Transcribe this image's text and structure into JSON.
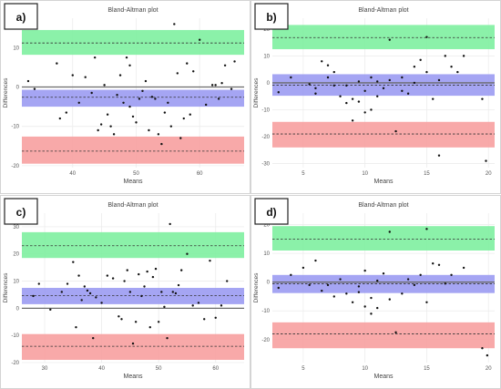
{
  "chart_data": [
    {
      "type": "scatter",
      "panel_label": "a)",
      "title": "Bland-Altman plot",
      "xlabel": "Means",
      "ylabel": "Differences",
      "xlim": [
        32,
        67
      ],
      "ylim": [
        -20.5,
        17.5
      ],
      "xticks": [
        40,
        50,
        60
      ],
      "yticks": [
        -20,
        -10,
        0,
        10
      ],
      "grid": true,
      "bands": [
        {
          "name": "upper",
          "color": "#7ef0a0",
          "low": 8.2,
          "high": 14.5,
          "mean": 11.2
        },
        {
          "name": "bias",
          "color": "#9b9bf2",
          "low": -5.0,
          "high": -0.7,
          "mean": -2.6
        },
        {
          "name": "lower",
          "color": "#f7a0a0",
          "low": -19.5,
          "high": -12.6,
          "mean": -16.3
        }
      ],
      "zero_line": true,
      "points": [
        [
          33.0,
          1.5
        ],
        [
          34.0,
          -0.5
        ],
        [
          37.5,
          6.0
        ],
        [
          38.0,
          -8.0
        ],
        [
          39.0,
          -6.5
        ],
        [
          40.0,
          3.0
        ],
        [
          41.0,
          -4.0
        ],
        [
          42.0,
          2.5
        ],
        [
          43.0,
          -1.5
        ],
        [
          43.5,
          7.5
        ],
        [
          44.0,
          -11.0
        ],
        [
          44.5,
          -9.5
        ],
        [
          45.0,
          0.5
        ],
        [
          45.5,
          -7.0
        ],
        [
          46.0,
          -10.0
        ],
        [
          46.5,
          -12.0
        ],
        [
          47.0,
          -2.0
        ],
        [
          47.5,
          3.0
        ],
        [
          48.0,
          -4.0
        ],
        [
          48.5,
          7.5
        ],
        [
          49.0,
          5.5
        ],
        [
          49.0,
          -5.0
        ],
        [
          49.5,
          -7.5
        ],
        [
          50.0,
          -9.0
        ],
        [
          50.5,
          -3.0
        ],
        [
          51.0,
          -1.0
        ],
        [
          51.5,
          1.5
        ],
        [
          52.0,
          -11.0
        ],
        [
          52.5,
          -2.5
        ],
        [
          53.0,
          -3.0
        ],
        [
          53.5,
          -12.0
        ],
        [
          54.0,
          -14.5
        ],
        [
          54.5,
          -6.5
        ],
        [
          55.0,
          -4.0
        ],
        [
          55.5,
          -10.0
        ],
        [
          56.0,
          16.0
        ],
        [
          56.5,
          3.5
        ],
        [
          57.0,
          -13.0
        ],
        [
          57.5,
          -8.0
        ],
        [
          58.0,
          6.0
        ],
        [
          58.5,
          -7.0
        ],
        [
          59.0,
          4.0
        ],
        [
          60.0,
          12.0
        ],
        [
          61.0,
          -4.5
        ],
        [
          62.0,
          0.5
        ],
        [
          62.5,
          0.5
        ],
        [
          63.0,
          -3.0
        ],
        [
          63.5,
          1.0
        ],
        [
          64.0,
          5.5
        ],
        [
          65.0,
          -0.5
        ],
        [
          65.5,
          6.5
        ]
      ]
    },
    {
      "type": "scatter",
      "panel_label": "b)",
      "title": "Bland-Altman plot",
      "xlabel": "Means",
      "ylabel": "Differences",
      "xlim": [
        2.5,
        20.5
      ],
      "ylim": [
        -31.5,
        24
      ],
      "xticks": [
        5,
        10,
        15,
        20
      ],
      "yticks": [
        -30,
        -20,
        -10,
        0,
        10,
        20
      ],
      "grid": true,
      "bands": [
        {
          "name": "upper",
          "color": "#7ef0a0",
          "low": 12.5,
          "high": 21.5,
          "mean": 16.8
        },
        {
          "name": "bias",
          "color": "#9b9bf2",
          "low": -4.8,
          "high": 3.2,
          "mean": -0.9
        },
        {
          "name": "lower",
          "color": "#f7a0a0",
          "low": -24.0,
          "high": -14.5,
          "mean": -19.0
        }
      ],
      "zero_line": true,
      "points": [
        [
          3.0,
          -3.5
        ],
        [
          4.0,
          2.0
        ],
        [
          5.5,
          -0.5
        ],
        [
          6.0,
          -2.0
        ],
        [
          6.0,
          -4.0
        ],
        [
          6.5,
          8.0
        ],
        [
          7.0,
          2.0
        ],
        [
          7.0,
          6.5
        ],
        [
          7.5,
          -1.0
        ],
        [
          7.5,
          4.0
        ],
        [
          8.0,
          -5.0
        ],
        [
          8.5,
          -7.5
        ],
        [
          8.5,
          -1.0
        ],
        [
          9.0,
          -14.0
        ],
        [
          9.0,
          -6.0
        ],
        [
          9.5,
          0.5
        ],
        [
          9.5,
          -7.0
        ],
        [
          10.0,
          -11.0
        ],
        [
          10.0,
          -3.0
        ],
        [
          10.5,
          -10.0
        ],
        [
          10.5,
          2.0
        ],
        [
          11.0,
          0.5
        ],
        [
          11.0,
          -5.0
        ],
        [
          11.5,
          -2.0
        ],
        [
          12.0,
          16.0
        ],
        [
          12.0,
          1.0
        ],
        [
          12.5,
          -18.0
        ],
        [
          13.0,
          -3.0
        ],
        [
          13.0,
          2.0
        ],
        [
          13.5,
          -4.0
        ],
        [
          14.0,
          6.0
        ],
        [
          14.0,
          0.0
        ],
        [
          14.5,
          8.5
        ],
        [
          15.0,
          4.0
        ],
        [
          15.0,
          17.0
        ],
        [
          15.5,
          -6.0
        ],
        [
          16.0,
          -27.0
        ],
        [
          16.0,
          1.0
        ],
        [
          16.5,
          10.0
        ],
        [
          17.0,
          6.0
        ],
        [
          17.5,
          4.0
        ],
        [
          18.0,
          10.0
        ],
        [
          19.5,
          -6.0
        ],
        [
          19.8,
          -29.0
        ]
      ]
    },
    {
      "type": "scatter",
      "panel_label": "c)",
      "title": "Bland-Altman plot",
      "xlabel": "Means",
      "ylabel": "Differences",
      "xlim": [
        26,
        65
      ],
      "ylim": [
        -20,
        35
      ],
      "xticks": [
        30,
        40,
        50,
        60
      ],
      "yticks": [
        -20,
        -10,
        0,
        10,
        20,
        30
      ],
      "grid": true,
      "bands": [
        {
          "name": "upper",
          "color": "#7ef0a0",
          "low": 18.5,
          "high": 28.0,
          "mean": 23.0
        },
        {
          "name": "bias",
          "color": "#9b9bf2",
          "low": 1.5,
          "high": 7.5,
          "mean": 4.7
        },
        {
          "name": "lower",
          "color": "#f7a0a0",
          "low": -19.0,
          "high": -9.5,
          "mean": -14.0
        }
      ],
      "zero_line": true,
      "points": [
        [
          28.0,
          4.5
        ],
        [
          29.0,
          9.0
        ],
        [
          31.0,
          -0.5
        ],
        [
          33.0,
          6.0
        ],
        [
          34.0,
          9.0
        ],
        [
          35.0,
          17.0
        ],
        [
          35.5,
          -7.0
        ],
        [
          36.0,
          12.0
        ],
        [
          36.5,
          3.0
        ],
        [
          37.0,
          8.0
        ],
        [
          37.5,
          6.5
        ],
        [
          38.0,
          5.5
        ],
        [
          38.5,
          -11.0
        ],
        [
          39.0,
          4.0
        ],
        [
          40.0,
          2.0
        ],
        [
          41.0,
          12.0
        ],
        [
          42.0,
          11.0
        ],
        [
          43.0,
          -3.0
        ],
        [
          43.5,
          -4.0
        ],
        [
          44.0,
          10.0
        ],
        [
          44.5,
          14.0
        ],
        [
          45.0,
          6.0
        ],
        [
          45.5,
          -13.0
        ],
        [
          46.0,
          -5.0
        ],
        [
          46.5,
          12.5
        ],
        [
          47.0,
          4.5
        ],
        [
          47.5,
          8.0
        ],
        [
          48.0,
          13.5
        ],
        [
          48.5,
          -7.0
        ],
        [
          49.0,
          11.5
        ],
        [
          49.5,
          14.5
        ],
        [
          50.0,
          -5.0
        ],
        [
          50.5,
          6.0
        ],
        [
          51.0,
          0.5
        ],
        [
          51.5,
          -11.0
        ],
        [
          52.0,
          31.0
        ],
        [
          52.5,
          6.0
        ],
        [
          53.0,
          5.5
        ],
        [
          53.5,
          8.5
        ],
        [
          54.0,
          14.0
        ],
        [
          55.0,
          20.0
        ],
        [
          56.0,
          1.0
        ],
        [
          57.0,
          2.0
        ],
        [
          58.0,
          -4.0
        ],
        [
          59.0,
          17.5
        ],
        [
          60.0,
          -3.5
        ],
        [
          61.0,
          1.0
        ],
        [
          62.0,
          10.0
        ]
      ]
    },
    {
      "type": "scatter",
      "panel_label": "d)",
      "title": "Bland-Altman plot",
      "xlabel": "Means",
      "ylabel": "Differences",
      "xlim": [
        2.5,
        20.5
      ],
      "ylim": [
        -28,
        24
      ],
      "xticks": [
        5,
        10,
        15,
        20
      ],
      "yticks": [
        -20,
        -10,
        0,
        10,
        20
      ],
      "grid": true,
      "bands": [
        {
          "name": "upper",
          "color": "#7ef0a0",
          "low": 11.0,
          "high": 19.5,
          "mean": 15.0
        },
        {
          "name": "bias",
          "color": "#9b9bf2",
          "low": -3.8,
          "high": 2.5,
          "mean": -0.6
        },
        {
          "name": "lower",
          "color": "#f7a0a0",
          "low": -23.0,
          "high": -14.0,
          "mean": -18.0
        }
      ],
      "zero_line": true,
      "points": [
        [
          3.0,
          -2.0
        ],
        [
          4.0,
          2.5
        ],
        [
          5.0,
          5.0
        ],
        [
          5.5,
          -1.0
        ],
        [
          6.0,
          7.5
        ],
        [
          6.5,
          -3.0
        ],
        [
          7.0,
          -1.0
        ],
        [
          7.5,
          -5.0
        ],
        [
          8.0,
          1.0
        ],
        [
          8.5,
          -4.0
        ],
        [
          9.0,
          -7.0
        ],
        [
          9.5,
          -3.5
        ],
        [
          9.5,
          -1.5
        ],
        [
          10.0,
          -8.5
        ],
        [
          10.0,
          4.0
        ],
        [
          10.5,
          -11.0
        ],
        [
          10.5,
          -5.5
        ],
        [
          11.0,
          -9.0
        ],
        [
          11.0,
          0.5
        ],
        [
          11.5,
          3.0
        ],
        [
          12.0,
          -6.0
        ],
        [
          12.0,
          17.5
        ],
        [
          12.5,
          -17.5
        ],
        [
          13.0,
          -4.0
        ],
        [
          13.5,
          1.0
        ],
        [
          14.0,
          -1.0
        ],
        [
          14.5,
          2.5
        ],
        [
          15.0,
          -7.0
        ],
        [
          15.0,
          18.5
        ],
        [
          15.5,
          6.5
        ],
        [
          16.0,
          6.0
        ],
        [
          16.5,
          -0.5
        ],
        [
          17.0,
          2.5
        ],
        [
          18.0,
          5.0
        ],
        [
          19.5,
          -23.0
        ],
        [
          19.9,
          -25.5
        ]
      ]
    }
  ]
}
